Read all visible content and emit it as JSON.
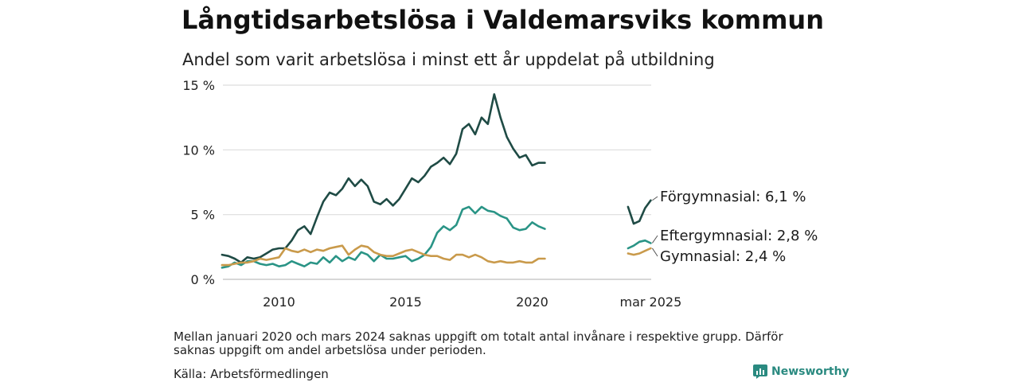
{
  "header": {
    "title": "Långtidsarbetslösa i Valdemarsviks kommun",
    "subtitle": "Andel som varit arbetslösa i minst ett år uppdelat på utbildning"
  },
  "footer": {
    "note": "Mellan januari 2020 och mars 2024 saknas uppgift om totalt antal invånare i respektive grupp. Därför saknas uppgift om andel arbetslösa under perioden.",
    "source": "Källa: Arbetsförmedlingen",
    "brand": "Newsworthy",
    "brand_color": "#2a8a80"
  },
  "chart_data": {
    "type": "line",
    "title": "Långtidsarbetslösa i Valdemarsviks kommun",
    "subtitle": "Andel som varit arbetslösa i minst ett år uppdelat på utbildning",
    "xlabel": "",
    "ylabel": "",
    "ylim": [
      0,
      15
    ],
    "y_ticks": [
      0,
      5,
      10,
      15
    ],
    "y_tick_labels": [
      "0 %",
      "5 %",
      "10 %",
      "15 %"
    ],
    "x_ticks": [
      "2010",
      "2015",
      "2020",
      "mar 2025"
    ],
    "grid": true,
    "legend": "direct labels at line ends",
    "gap": "januari 2020 – mars 2024 (after 2020-12)",
    "series": [
      {
        "name": "Förgymnasial",
        "end_label": "Förgymnasial: 6,1 %",
        "color": "#1f4b45",
        "segments": [
          [
            [
              "2008-03",
              1.9
            ],
            [
              "2008-06",
              1.8
            ],
            [
              "2008-09",
              1.6
            ],
            [
              "2008-12",
              1.3
            ],
            [
              "2009-03",
              1.7
            ],
            [
              "2009-06",
              1.6
            ],
            [
              "2009-09",
              1.7
            ],
            [
              "2009-12",
              2.0
            ],
            [
              "2010-03",
              2.3
            ],
            [
              "2010-06",
              2.4
            ],
            [
              "2010-09",
              2.4
            ],
            [
              "2010-12",
              3.0
            ],
            [
              "2011-03",
              3.8
            ],
            [
              "2011-06",
              4.1
            ],
            [
              "2011-09",
              3.5
            ],
            [
              "2011-12",
              4.8
            ],
            [
              "2012-03",
              6.0
            ],
            [
              "2012-06",
              6.7
            ],
            [
              "2012-09",
              6.5
            ],
            [
              "2012-12",
              7.0
            ],
            [
              "2013-03",
              7.8
            ],
            [
              "2013-06",
              7.2
            ],
            [
              "2013-09",
              7.7
            ],
            [
              "2013-12",
              7.2
            ],
            [
              "2014-03",
              6.0
            ],
            [
              "2014-06",
              5.8
            ],
            [
              "2014-09",
              6.2
            ],
            [
              "2014-12",
              5.7
            ],
            [
              "2015-03",
              6.2
            ],
            [
              "2015-06",
              7.0
            ],
            [
              "2015-09",
              7.8
            ],
            [
              "2015-12",
              7.5
            ],
            [
              "2016-03",
              8.0
            ],
            [
              "2016-06",
              8.7
            ],
            [
              "2016-09",
              9.0
            ],
            [
              "2016-12",
              9.4
            ],
            [
              "2017-03",
              8.9
            ],
            [
              "2017-06",
              9.7
            ],
            [
              "2017-09",
              11.6
            ],
            [
              "2017-12",
              12.0
            ],
            [
              "2018-03",
              11.2
            ],
            [
              "2018-06",
              12.5
            ],
            [
              "2018-09",
              12.0
            ],
            [
              "2018-12",
              14.3
            ],
            [
              "2019-03",
              12.5
            ],
            [
              "2019-06",
              11.0
            ],
            [
              "2019-09",
              10.1
            ],
            [
              "2019-12",
              9.4
            ],
            [
              "2020-03",
              9.6
            ],
            [
              "2020-06",
              8.8
            ],
            [
              "2020-09",
              9.0
            ],
            [
              "2020-12",
              9.0
            ]
          ],
          [
            [
              "2024-03",
              5.6
            ],
            [
              "2024-06",
              4.3
            ],
            [
              "2024-09",
              4.5
            ],
            [
              "2024-12",
              5.5
            ],
            [
              "2025-03",
              6.1
            ]
          ]
        ]
      },
      {
        "name": "Eftergymnasial",
        "end_label": "Eftergymnasial: 2,8 %",
        "color": "#2a9486",
        "segments": [
          [
            [
              "2008-03",
              0.9
            ],
            [
              "2008-06",
              1.0
            ],
            [
              "2008-09",
              1.3
            ],
            [
              "2008-12",
              1.1
            ],
            [
              "2009-03",
              1.4
            ],
            [
              "2009-06",
              1.4
            ],
            [
              "2009-09",
              1.2
            ],
            [
              "2009-12",
              1.1
            ],
            [
              "2010-03",
              1.2
            ],
            [
              "2010-06",
              1.0
            ],
            [
              "2010-09",
              1.1
            ],
            [
              "2010-12",
              1.4
            ],
            [
              "2011-03",
              1.2
            ],
            [
              "2011-06",
              1.0
            ],
            [
              "2011-09",
              1.3
            ],
            [
              "2011-12",
              1.2
            ],
            [
              "2012-03",
              1.7
            ],
            [
              "2012-06",
              1.3
            ],
            [
              "2012-09",
              1.8
            ],
            [
              "2012-12",
              1.4
            ],
            [
              "2013-03",
              1.7
            ],
            [
              "2013-06",
              1.5
            ],
            [
              "2013-09",
              2.1
            ],
            [
              "2013-12",
              1.9
            ],
            [
              "2014-03",
              1.4
            ],
            [
              "2014-06",
              1.9
            ],
            [
              "2014-09",
              1.6
            ],
            [
              "2014-12",
              1.6
            ],
            [
              "2015-03",
              1.7
            ],
            [
              "2015-06",
              1.8
            ],
            [
              "2015-09",
              1.4
            ],
            [
              "2015-12",
              1.6
            ],
            [
              "2016-03",
              1.9
            ],
            [
              "2016-06",
              2.5
            ],
            [
              "2016-09",
              3.6
            ],
            [
              "2016-12",
              4.1
            ],
            [
              "2017-03",
              3.8
            ],
            [
              "2017-06",
              4.2
            ],
            [
              "2017-09",
              5.4
            ],
            [
              "2017-12",
              5.6
            ],
            [
              "2018-03",
              5.1
            ],
            [
              "2018-06",
              5.6
            ],
            [
              "2018-09",
              5.3
            ],
            [
              "2018-12",
              5.2
            ],
            [
              "2019-03",
              4.9
            ],
            [
              "2019-06",
              4.7
            ],
            [
              "2019-09",
              4.0
            ],
            [
              "2019-12",
              3.8
            ],
            [
              "2020-03",
              3.9
            ],
            [
              "2020-06",
              4.4
            ],
            [
              "2020-09",
              4.1
            ],
            [
              "2020-12",
              3.9
            ]
          ],
          [
            [
              "2024-03",
              2.4
            ],
            [
              "2024-06",
              2.6
            ],
            [
              "2024-09",
              2.9
            ],
            [
              "2024-12",
              3.0
            ],
            [
              "2025-03",
              2.8
            ]
          ]
        ]
      },
      {
        "name": "Gymnasial",
        "end_label": "Gymnasial: 2,4 %",
        "color": "#c99a4b",
        "segments": [
          [
            [
              "2008-03",
              1.1
            ],
            [
              "2008-06",
              1.1
            ],
            [
              "2008-09",
              1.2
            ],
            [
              "2008-12",
              1.3
            ],
            [
              "2009-03",
              1.3
            ],
            [
              "2009-06",
              1.4
            ],
            [
              "2009-09",
              1.6
            ],
            [
              "2009-12",
              1.5
            ],
            [
              "2010-03",
              1.6
            ],
            [
              "2010-06",
              1.7
            ],
            [
              "2010-09",
              2.4
            ],
            [
              "2010-12",
              2.2
            ],
            [
              "2011-03",
              2.1
            ],
            [
              "2011-06",
              2.3
            ],
            [
              "2011-09",
              2.1
            ],
            [
              "2011-12",
              2.3
            ],
            [
              "2012-03",
              2.2
            ],
            [
              "2012-06",
              2.4
            ],
            [
              "2012-09",
              2.5
            ],
            [
              "2012-12",
              2.6
            ],
            [
              "2013-03",
              1.9
            ],
            [
              "2013-06",
              2.3
            ],
            [
              "2013-09",
              2.6
            ],
            [
              "2013-12",
              2.5
            ],
            [
              "2014-03",
              2.1
            ],
            [
              "2014-06",
              1.9
            ],
            [
              "2014-09",
              1.8
            ],
            [
              "2014-12",
              1.8
            ],
            [
              "2015-03",
              2.0
            ],
            [
              "2015-06",
              2.2
            ],
            [
              "2015-09",
              2.3
            ],
            [
              "2015-12",
              2.1
            ],
            [
              "2016-03",
              1.9
            ],
            [
              "2016-06",
              1.8
            ],
            [
              "2016-09",
              1.8
            ],
            [
              "2016-12",
              1.6
            ],
            [
              "2017-03",
              1.5
            ],
            [
              "2017-06",
              1.9
            ],
            [
              "2017-09",
              1.9
            ],
            [
              "2017-12",
              1.7
            ],
            [
              "2018-03",
              1.9
            ],
            [
              "2018-06",
              1.7
            ],
            [
              "2018-09",
              1.4
            ],
            [
              "2018-12",
              1.3
            ],
            [
              "2019-03",
              1.4
            ],
            [
              "2019-06",
              1.3
            ],
            [
              "2019-09",
              1.3
            ],
            [
              "2019-12",
              1.4
            ],
            [
              "2020-03",
              1.3
            ],
            [
              "2020-06",
              1.3
            ],
            [
              "2020-09",
              1.6
            ],
            [
              "2020-12",
              1.6
            ]
          ],
          [
            [
              "2024-03",
              2.0
            ],
            [
              "2024-06",
              1.9
            ],
            [
              "2024-09",
              2.0
            ],
            [
              "2024-12",
              2.2
            ],
            [
              "2025-03",
              2.4
            ]
          ]
        ]
      }
    ]
  }
}
